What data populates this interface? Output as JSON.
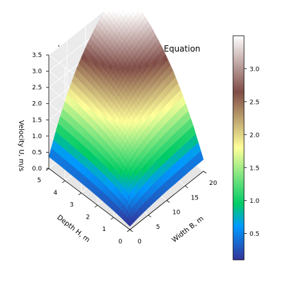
{
  "chart_data": {
    "type": "surface",
    "title": "Velocity Using Manning’s Equation",
    "x_axis": {
      "label": "Width B, m",
      "range": [
        0,
        20
      ],
      "ticks": [
        "0",
        "5",
        "10",
        "15",
        "20"
      ]
    },
    "y_axis": {
      "label": "Depth H, m",
      "range": [
        0,
        5
      ],
      "ticks": [
        "0",
        "1",
        "2",
        "3",
        "4",
        "5"
      ]
    },
    "z_axis": {
      "label": "Velocity U, m/s",
      "range": [
        0,
        3.5
      ],
      "ticks": [
        "0.0",
        "0.5",
        "1.0",
        "1.5",
        "2.0",
        "2.5",
        "3.0",
        "3.5"
      ]
    },
    "surface": {
      "x": [
        0,
        2.5,
        5,
        7.5,
        10,
        12.5,
        15,
        17.5,
        20
      ],
      "y": [
        0,
        0.625,
        1.25,
        1.875,
        2.5,
        3.125,
        3.75,
        4.375,
        5
      ],
      "z": [
        [
          0.1,
          0.17,
          0.22,
          0.26,
          0.29,
          0.31,
          0.33,
          0.35,
          0.36
        ],
        [
          0.17,
          0.62,
          0.8,
          0.91,
          0.99,
          1.05,
          1.09,
          1.13,
          1.16
        ],
        [
          0.22,
          0.8,
          1.14,
          1.35,
          1.5,
          1.62,
          1.71,
          1.78,
          1.84
        ],
        [
          0.26,
          0.91,
          1.35,
          1.66,
          1.88,
          2.05,
          2.19,
          2.3,
          2.39
        ],
        [
          0.29,
          0.99,
          1.5,
          1.88,
          2.16,
          2.38,
          2.56,
          2.71,
          2.83
        ],
        [
          0.31,
          1.05,
          1.62,
          2.05,
          2.38,
          2.64,
          2.86,
          3.04,
          3.19
        ],
        [
          0.33,
          1.09,
          1.71,
          2.19,
          2.56,
          2.86,
          3.1,
          3.31,
          3.48
        ],
        [
          0.35,
          1.13,
          1.78,
          2.3,
          2.71,
          3.04,
          3.31,
          3.53,
          3.72
        ],
        [
          0.36,
          1.16,
          1.84,
          2.39,
          2.83,
          3.19,
          3.48,
          3.72,
          3.93
        ]
      ]
    },
    "colormap": "terrain",
    "colorbar": {
      "range": [
        0.1,
        3.5
      ],
      "ticks": [
        "0.5",
        "1.0",
        "1.5",
        "2.0",
        "2.5",
        "3.0"
      ]
    },
    "grid": true,
    "view": {
      "elev": 30,
      "azim": 45
    }
  }
}
